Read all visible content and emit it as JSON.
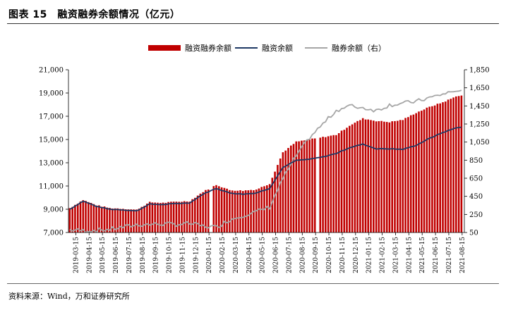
{
  "figure": {
    "title": "图表 15　融资融券余额情况（亿元）",
    "source": "资料来源：Wind，万和证券研究所"
  },
  "colors": {
    "bar": "#C00000",
    "financing_line": "#1F3864",
    "securities_line": "#A6A6A6"
  },
  "chart_data": {
    "type": "bar",
    "title": "",
    "legend_position": "top",
    "grid": false,
    "series": [
      {
        "name": "融资融券余额",
        "type": "bar",
        "axis": "left"
      },
      {
        "name": "融资余额",
        "type": "line",
        "axis": "left"
      },
      {
        "name": "融券余额（右）",
        "type": "line",
        "axis": "right"
      }
    ],
    "y_left": {
      "min": 7000,
      "max": 21000,
      "step": 2000,
      "tick_labels": [
        "7,000",
        "9,000",
        "11,000",
        "13,000",
        "15,000",
        "17,000",
        "19,000",
        "21,000"
      ]
    },
    "y_right": {
      "min": 50,
      "max": 1850,
      "step": 200,
      "tick_labels": [
        "50",
        "250",
        "450",
        "650",
        "850",
        "1,050",
        "1,250",
        "1,450",
        "1,650",
        "1,850"
      ]
    },
    "x_tick_labels": [
      "2019-03-15",
      "2019-04-15",
      "2019-05-15",
      "2019-06-15",
      "2019-07-15",
      "2019-08-15",
      "2019-09-15",
      "2019-10-15",
      "2019-11-15",
      "2019-12-15",
      "2020-01-15",
      "2020-02-15",
      "2020-03-15",
      "2020-04-15",
      "2020-05-15",
      "2020-06-15",
      "2020-07-15",
      "2020-08-15",
      "2020-09-15",
      "2020-10-15",
      "2020-11-15",
      "2020-12-15",
      "2021-01-15",
      "2021-02-15",
      "2021-03-15",
      "2021-04-15",
      "2021-05-15",
      "2021-06-15",
      "2021-07-15",
      "2021-08-15"
    ],
    "monthly": {
      "months": [
        "2019-03",
        "2019-04",
        "2019-05",
        "2019-06",
        "2019-07",
        "2019-08",
        "2019-09",
        "2019-10",
        "2019-11",
        "2019-12",
        "2020-01",
        "2020-02",
        "2020-03",
        "2020-04",
        "2020-05",
        "2020-06",
        "2020-07",
        "2020-08",
        "2020-09",
        "2020-10",
        "2020-11",
        "2020-12",
        "2021-01",
        "2021-02",
        "2021-03",
        "2021-04",
        "2021-05",
        "2021-06",
        "2021-07",
        "2021-08"
      ],
      "margin_total": [
        9100,
        9800,
        9350,
        9100,
        9050,
        8950,
        9600,
        9550,
        9650,
        9700,
        10500,
        11100,
        10650,
        10600,
        10700,
        11200,
        13900,
        14800,
        15000,
        15200,
        15400,
        16200,
        16800,
        16600,
        16500,
        16700,
        17300,
        17800,
        18200,
        18700
      ],
      "financing_balance": [
        9000,
        9700,
        9250,
        9000,
        8950,
        8850,
        9450,
        9400,
        9500,
        9550,
        10300,
        10800,
        10400,
        10300,
        10400,
        10800,
        12600,
        13200,
        13300,
        13500,
        13800,
        14300,
        14600,
        14200,
        14200,
        14150,
        14500,
        15100,
        15600,
        16000
      ],
      "securities_balance": [
        80,
        70,
        75,
        85,
        110,
        135,
        140,
        145,
        140,
        150,
        120,
        110,
        190,
        240,
        280,
        330,
        650,
        900,
        1100,
        1250,
        1400,
        1450,
        1430,
        1400,
        1460,
        1480,
        1500,
        1540,
        1580,
        1620
      ]
    },
    "gaps": [
      "2020-01-end",
      "2020-09-end"
    ]
  }
}
